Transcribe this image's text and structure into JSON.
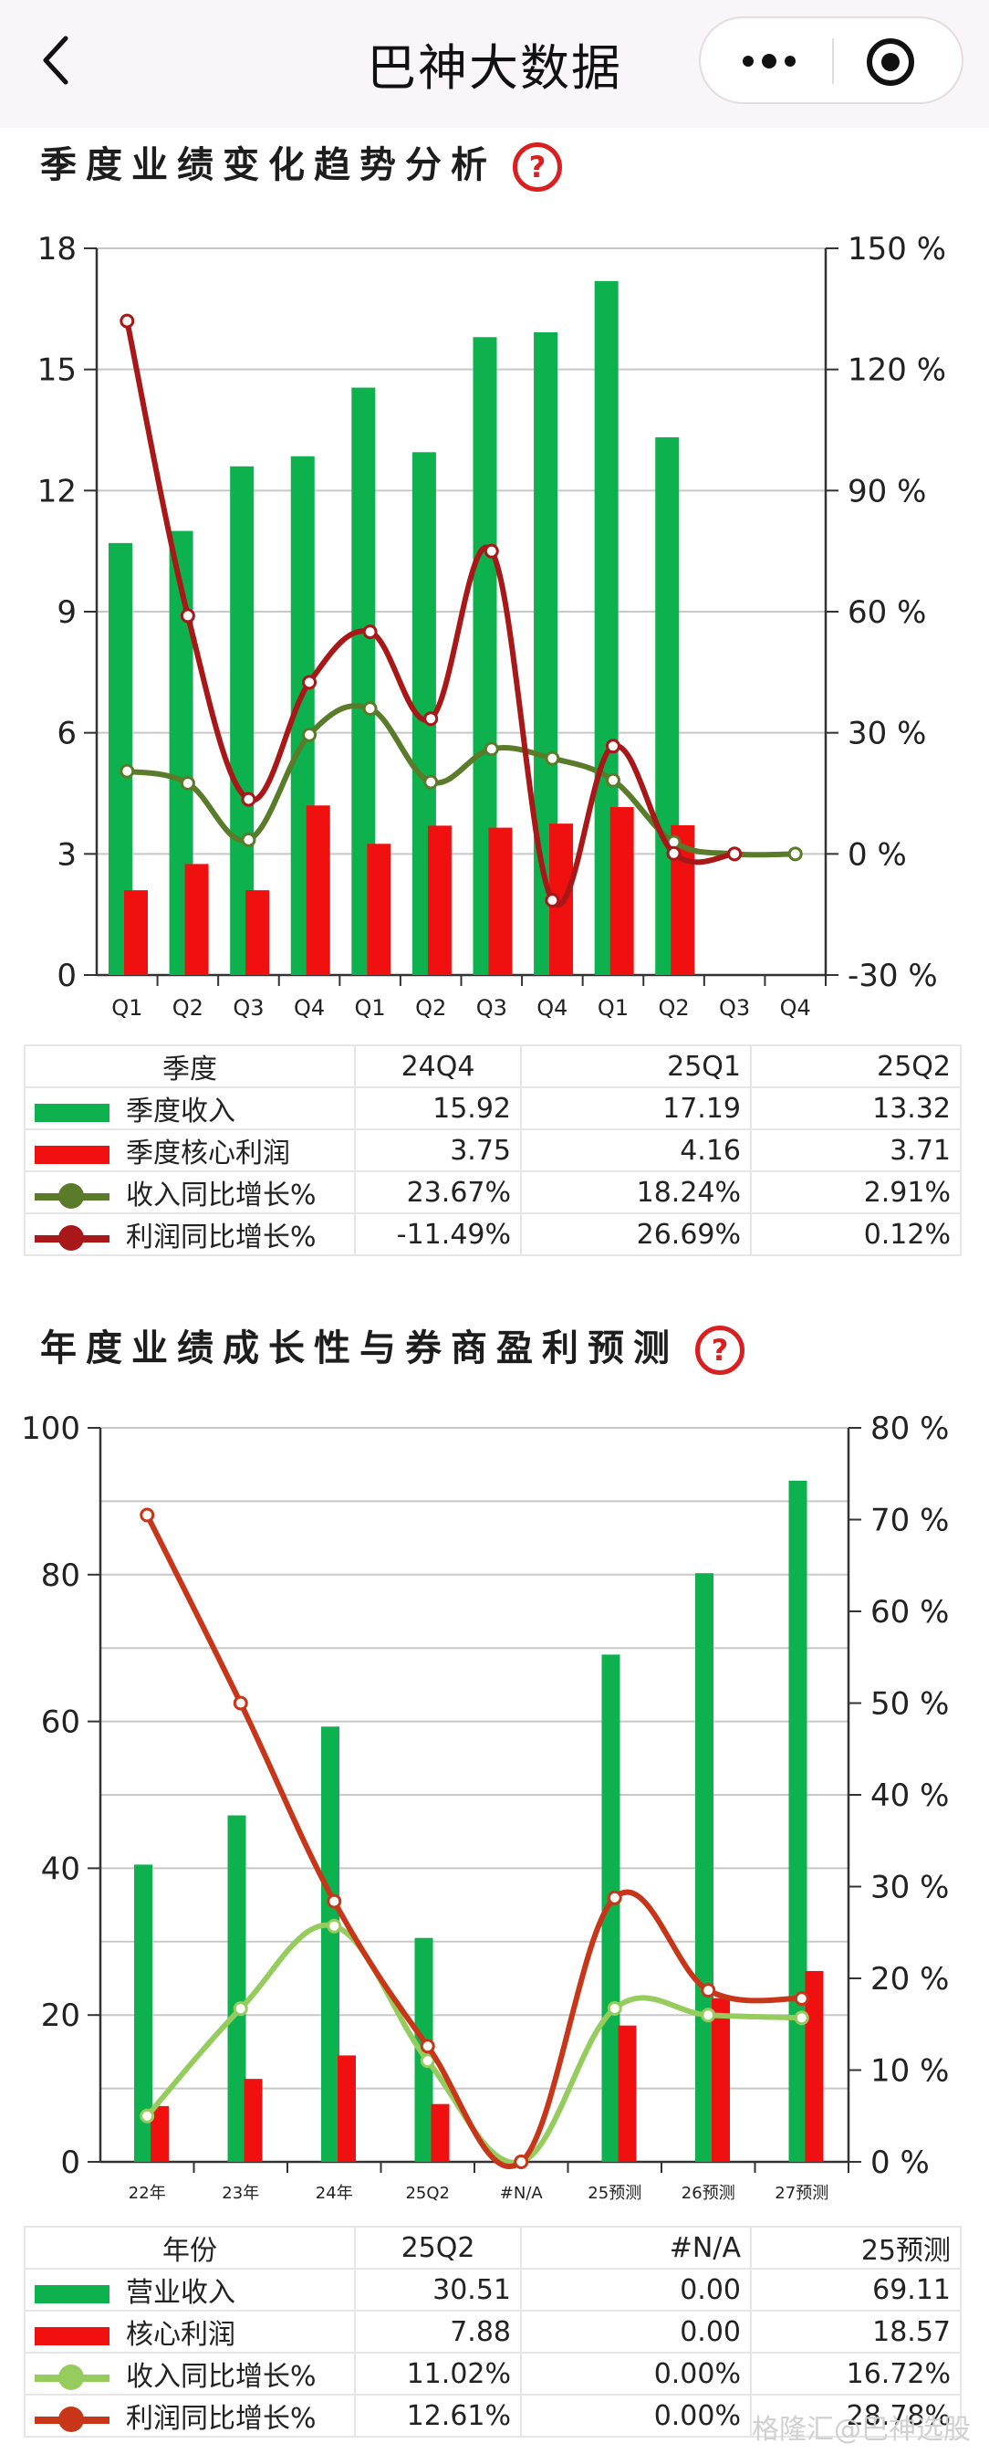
{
  "header": {
    "title": "巴神大数据"
  },
  "quarterly": {
    "section_title": "季度业绩变化趋势分析",
    "help_label": "?",
    "chart_data": {
      "type": "bar",
      "categories": [
        "Q1",
        "Q2",
        "Q3",
        "Q4",
        "Q1",
        "Q2",
        "Q3",
        "Q4",
        "Q1",
        "Q2",
        "Q3",
        "Q4"
      ],
      "ylim": [
        0,
        18
      ],
      "y2lim": [
        -30,
        150
      ],
      "yticks": [
        0,
        3,
        6,
        9,
        12,
        15,
        18
      ],
      "y2ticks": [
        "-30 %",
        "0 %",
        "30 %",
        "60 %",
        "90 %",
        "120 %",
        "150 %"
      ],
      "series": [
        {
          "name": "季度收入",
          "type": "bar",
          "axis": "left",
          "color": "#0db24f",
          "values": [
            10.7,
            11.0,
            12.6,
            12.85,
            14.55,
            12.95,
            15.8,
            15.92,
            17.19,
            13.32,
            null,
            null
          ]
        },
        {
          "name": "季度核心利润",
          "type": "bar",
          "axis": "left",
          "color": "#f01010",
          "values": [
            2.1,
            2.75,
            2.1,
            4.2,
            3.25,
            3.7,
            3.65,
            3.75,
            4.16,
            3.71,
            null,
            null
          ]
        },
        {
          "name": "收入同比增长%",
          "type": "line",
          "axis": "right",
          "color": "#5a7b2a",
          "values": [
            20.5,
            17.5,
            3.5,
            29.5,
            36.0,
            17.8,
            26.0,
            23.67,
            18.24,
            2.91,
            0,
            0
          ]
        },
        {
          "name": "利润同比增长%",
          "type": "line",
          "axis": "right",
          "color": "#a81818",
          "values": [
            132.0,
            59.0,
            13.5,
            42.5,
            55.0,
            33.5,
            75.0,
            -11.49,
            26.69,
            0.12,
            0,
            null
          ]
        }
      ]
    },
    "table": {
      "headers": [
        "季度",
        "24Q4",
        "25Q1",
        "25Q2"
      ],
      "rows": [
        {
          "label": "季度收入",
          "values": [
            "15.92",
            "17.19",
            "13.32"
          ]
        },
        {
          "label": "季度核心利润",
          "values": [
            "3.75",
            "4.16",
            "3.71"
          ]
        },
        {
          "label": "收入同比增长%",
          "values": [
            "23.67%",
            "18.24%",
            "2.91%"
          ]
        },
        {
          "label": "利润同比增长%",
          "values": [
            "-11.49%",
            "26.69%",
            "0.12%"
          ]
        }
      ]
    }
  },
  "annual": {
    "section_title": "年度业绩成长性与券商盈利预测",
    "help_label": "?",
    "chart_data": {
      "type": "bar",
      "categories": [
        "22年",
        "23年",
        "24年",
        "25Q2",
        "#N/A",
        "25预测",
        "26预测",
        "27预测"
      ],
      "ylim": [
        0,
        100
      ],
      "y2lim": [
        0,
        80
      ],
      "yticks": [
        0,
        20,
        40,
        60,
        80,
        100
      ],
      "y2ticks": [
        "0 %",
        "10 %",
        "20 %",
        "30 %",
        "40 %",
        "50 %",
        "60 %",
        "70 %",
        "80 %"
      ],
      "series": [
        {
          "name": "营业收入",
          "type": "bar",
          "axis": "left",
          "color": "#0db24f",
          "values": [
            40.5,
            47.2,
            59.3,
            30.51,
            0.0,
            69.11,
            80.2,
            92.8
          ]
        },
        {
          "name": "核心利润",
          "type": "bar",
          "axis": "left",
          "color": "#f01010",
          "values": [
            7.6,
            11.3,
            14.5,
            7.88,
            0.0,
            18.57,
            22.3,
            26.0
          ]
        },
        {
          "name": "收入同比增长%",
          "type": "line",
          "axis": "right",
          "color": "#96cc5e",
          "values": [
            5.0,
            16.7,
            25.7,
            11.02,
            0.0,
            16.72,
            16.0,
            15.7
          ]
        },
        {
          "name": "利润同比增长%",
          "type": "line",
          "axis": "right",
          "color": "#c8361a",
          "values": [
            70.5,
            50.0,
            28.4,
            12.61,
            0.0,
            28.78,
            18.7,
            17.8
          ]
        }
      ]
    },
    "table": {
      "headers": [
        "年份",
        "25Q2",
        "#N/A",
        "25预测"
      ],
      "rows": [
        {
          "label": "营业收入",
          "values": [
            "30.51",
            "0.00",
            "69.11"
          ]
        },
        {
          "label": "核心利润",
          "values": [
            "7.88",
            "0.00",
            "18.57"
          ]
        },
        {
          "label": "收入同比增长%",
          "values": [
            "11.02%",
            "0.00%",
            "16.72%"
          ]
        },
        {
          "label": "利润同比增长%",
          "values": [
            "12.61%",
            "0.00%",
            "28.78%"
          ]
        }
      ]
    }
  },
  "watermark": "格隆汇@巴神选股"
}
